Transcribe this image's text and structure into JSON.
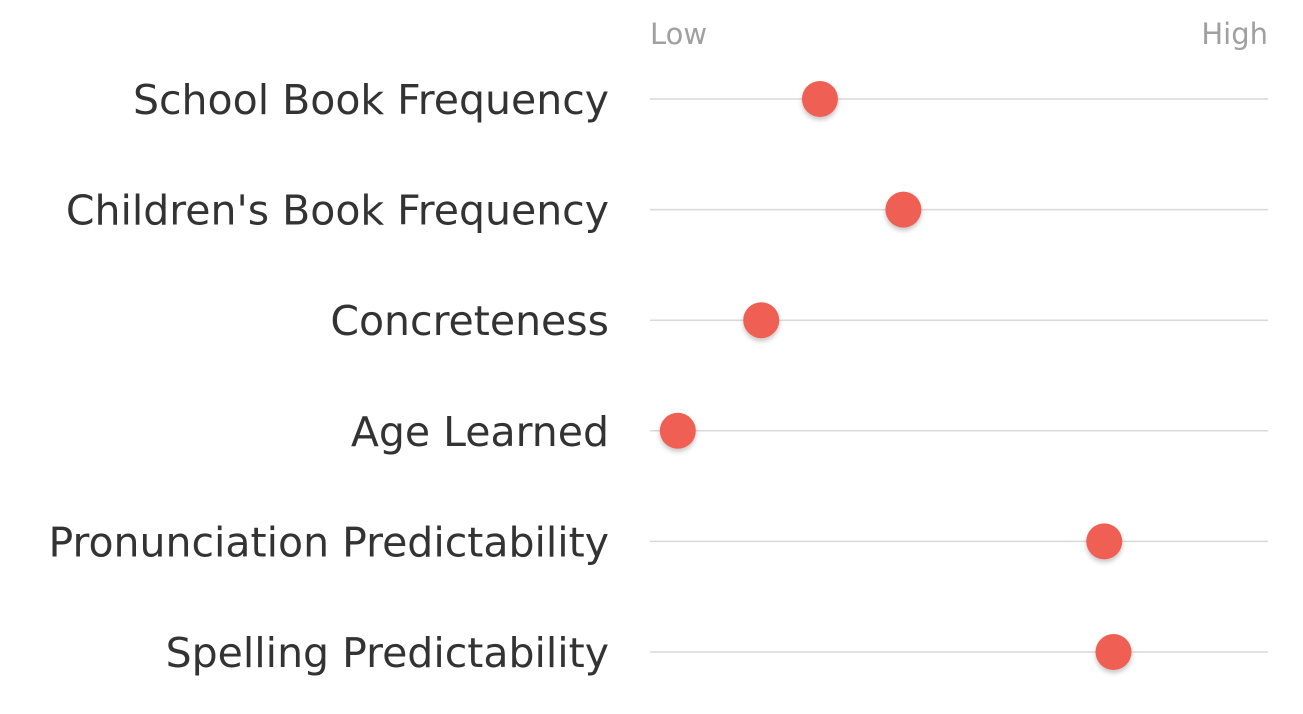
{
  "chart_data": {
    "type": "scatter",
    "scale_low_label": "Low",
    "scale_high_label": "High",
    "xlim": [
      0,
      1
    ],
    "grid": true,
    "dot_color": "#ef5f52",
    "categories": [
      "School Book Frequency",
      "Children's Book Frequency",
      "Concreteness",
      "Age Learned",
      "Pronunciation Predictability",
      "Spelling Predictability"
    ],
    "values": [
      0.275,
      0.41,
      0.18,
      0.045,
      0.735,
      0.75
    ]
  }
}
